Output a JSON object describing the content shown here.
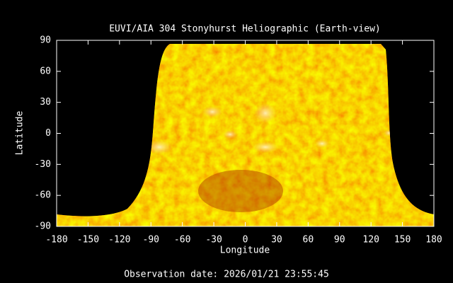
{
  "chart_data": {
    "type": "map",
    "title": "EUVI/AIA 304 Stonyhurst Heliographic (Earth-view)",
    "xlabel": "Longitude",
    "ylabel": "Latitude",
    "xlim": [
      -180,
      180
    ],
    "ylim": [
      -90,
      90
    ],
    "xticks": [
      -180,
      -150,
      -120,
      -90,
      -60,
      -30,
      0,
      30,
      60,
      90,
      120,
      150,
      180
    ],
    "yticks": [
      -90,
      -60,
      -30,
      0,
      30,
      60,
      90
    ],
    "footer": "Observation date: 2026/01/21 23:55:45"
  }
}
